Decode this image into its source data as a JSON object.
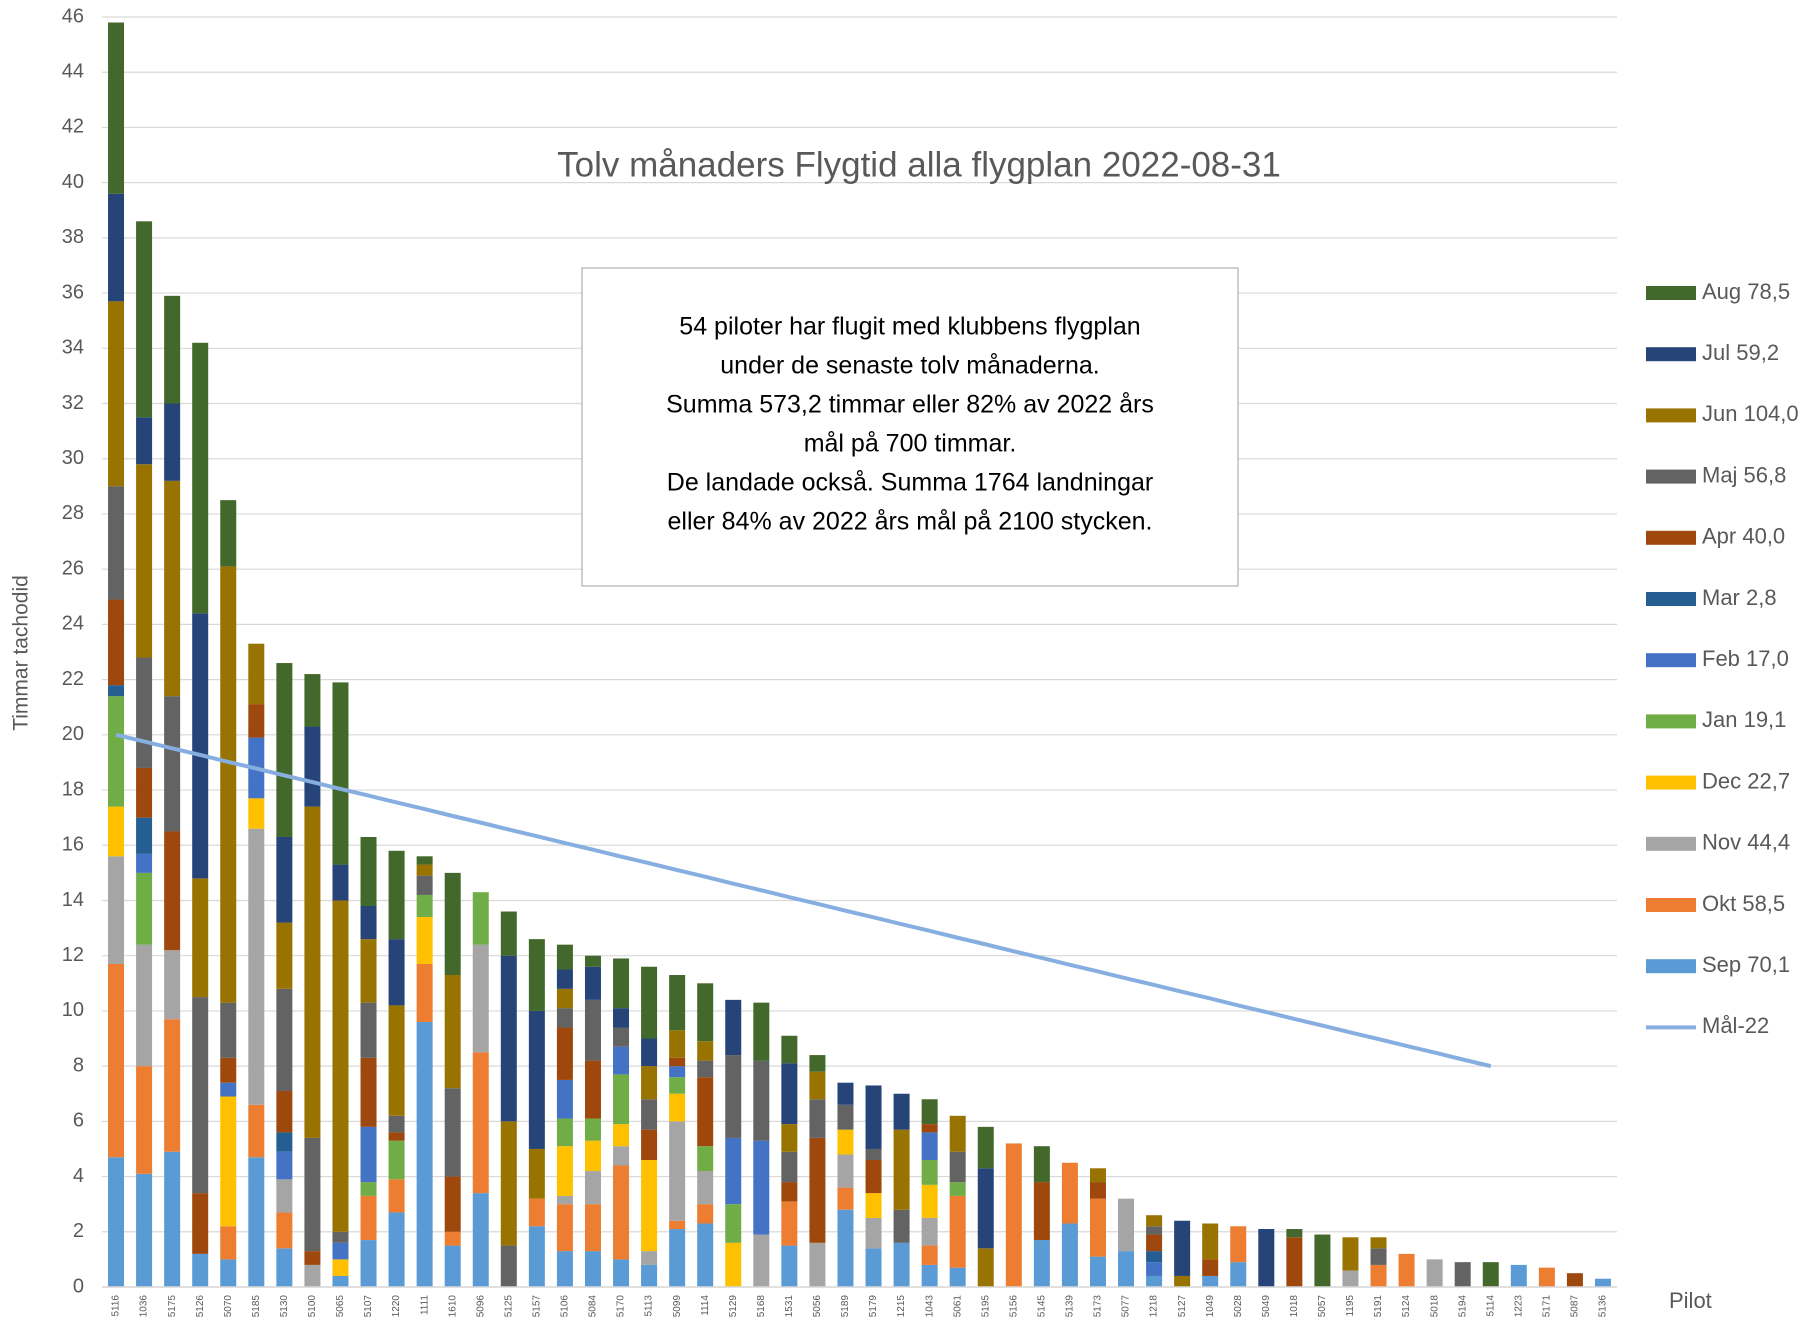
{
  "chart_data": {
    "type": "stacked_bar",
    "title": "Tolv månaders Flygtid alla flygplan 2022-08-31",
    "y_label": "Timmar tachodid",
    "x_label": "Pilot",
    "annotation": [
      "54 piloter har flugit med klubbens flygplan",
      "under de senaste tolv månaderna.",
      "Summa 573,2 timmar eller 82% av 2022 års",
      "mål på 700 timmar.",
      "De landade också. Summa 1764 landningar",
      "eller 84% av 2022 års mål på 2100 stycken."
    ],
    "categories": [
      "5116",
      "1036",
      "5175",
      "5126",
      "5070",
      "5185",
      "5130",
      "5100",
      "5065",
      "5107",
      "1220",
      "1111",
      "1610",
      "5096",
      "5125",
      "5157",
      "5106",
      "5084",
      "5170",
      "5113",
      "5099",
      "1114",
      "5129",
      "5168",
      "1531",
      "5056",
      "5189",
      "5179",
      "1215",
      "1043",
      "5061",
      "5195",
      "5156",
      "5145",
      "5139",
      "5173",
      "5077",
      "1218",
      "5127",
      "1049",
      "5028",
      "5049",
      "1018",
      "5057",
      "1195",
      "5191",
      "5124",
      "5018",
      "5194",
      "5114",
      "1223",
      "5171",
      "5087",
      "5136"
    ],
    "series": [
      {
        "name": "Sep 70,1",
        "color": "#5b9bd5",
        "values": [
          4.7,
          4.1,
          4.9,
          1.2,
          1.0,
          4.7,
          1.4,
          0,
          0.4,
          1.7,
          2.7,
          9.6,
          1.5,
          3.4,
          0,
          2.2,
          1.3,
          1.3,
          1.0,
          0.8,
          2.1,
          2.3,
          0,
          0,
          1.5,
          0,
          2.8,
          1.4,
          1.6,
          0.8,
          0.7,
          0,
          0,
          1.7,
          2.3,
          1.1,
          1.3,
          0.4,
          0,
          0.4,
          0.9,
          0,
          0,
          0,
          0,
          0,
          0,
          0,
          0,
          0,
          0.8,
          0,
          0,
          0.3
        ]
      },
      {
        "name": "Okt 58,5",
        "color": "#ed7d31",
        "values": [
          7.0,
          3.9,
          4.8,
          0,
          1.2,
          1.9,
          1.3,
          0,
          0,
          1.6,
          1.2,
          2.1,
          0.5,
          5.1,
          0,
          1.0,
          1.7,
          1.7,
          3.4,
          0,
          0.3,
          0.7,
          0,
          0,
          1.6,
          0,
          0.8,
          0,
          0,
          0.7,
          2.6,
          0,
          5.2,
          0,
          2.2,
          2.1,
          0,
          0,
          0,
          0,
          1.3,
          0,
          0,
          0,
          0,
          0.8,
          1.2,
          0,
          0,
          0,
          0,
          0.7,
          0,
          0
        ]
      },
      {
        "name": "Nov 44,4",
        "color": "#a5a5a5",
        "values": [
          3.9,
          4.4,
          2.5,
          0,
          0,
          10.0,
          1.2,
          0.8,
          0,
          0,
          0,
          0,
          0,
          3.9,
          0,
          0,
          0.3,
          1.2,
          0.7,
          0.5,
          3.6,
          1.2,
          0,
          1.9,
          0,
          1.6,
          1.2,
          1.1,
          0,
          1.0,
          0,
          0,
          0,
          0,
          0,
          0,
          1.9,
          0,
          0,
          0,
          0,
          0,
          0,
          0,
          0.6,
          0,
          0,
          1.0,
          0,
          0,
          0,
          0,
          0,
          0
        ]
      },
      {
        "name": "Dec 22,7",
        "color": "#ffc000",
        "values": [
          1.8,
          0,
          0,
          0,
          4.7,
          1.1,
          0,
          0,
          0.6,
          0,
          0,
          1.7,
          0,
          0,
          0,
          0,
          1.8,
          1.1,
          0.8,
          3.3,
          1.0,
          0,
          1.6,
          0,
          0,
          0,
          0.9,
          0.9,
          0,
          1.2,
          0,
          0,
          0,
          0,
          0,
          0,
          0,
          0,
          0,
          0,
          0,
          0,
          0,
          0,
          0,
          0,
          0,
          0,
          0,
          0,
          0,
          0,
          0,
          0
        ]
      },
      {
        "name": "Jan 19,1",
        "color": "#70ad47",
        "values": [
          4.0,
          2.6,
          0,
          0,
          0,
          0,
          0,
          0,
          0,
          0.5,
          1.4,
          0.8,
          0,
          1.9,
          0,
          0,
          1.0,
          0.8,
          1.8,
          0,
          0.6,
          0.9,
          1.4,
          0,
          0,
          0,
          0,
          0,
          0,
          0.9,
          0.5,
          0,
          0,
          0,
          0,
          0,
          0,
          0,
          0,
          0,
          0,
          0,
          0,
          0,
          0,
          0,
          0,
          0,
          0,
          0,
          0,
          0,
          0,
          0
        ]
      },
      {
        "name": "Feb 17,0",
        "color": "#4472c4",
        "values": [
          0,
          0.7,
          0,
          0,
          0.5,
          2.2,
          1.0,
          0,
          0.6,
          2.0,
          0,
          0,
          0,
          0,
          0,
          0,
          1.4,
          0,
          1.0,
          0,
          0.4,
          0,
          2.4,
          3.4,
          0,
          0,
          0,
          0,
          0,
          1.0,
          0,
          0,
          0,
          0,
          0,
          0,
          0,
          0.5,
          0,
          0,
          0,
          0,
          0,
          0,
          0,
          0,
          0,
          0,
          0,
          0,
          0,
          0,
          0,
          0
        ]
      },
      {
        "name": "Mar 2,8",
        "color": "#255e91",
        "values": [
          0.4,
          1.3,
          0,
          0,
          0,
          0,
          0.7,
          0,
          0,
          0,
          0,
          0,
          0,
          0,
          0,
          0,
          0,
          0,
          0,
          0,
          0,
          0,
          0,
          0,
          0,
          0,
          0,
          0,
          0,
          0,
          0,
          0,
          0,
          0,
          0,
          0,
          0,
          0.4,
          0,
          0,
          0,
          0,
          0,
          0,
          0,
          0,
          0,
          0,
          0,
          0,
          0,
          0,
          0,
          0
        ]
      },
      {
        "name": "Apr 40,0",
        "color": "#9e480e",
        "values": [
          3.1,
          1.8,
          4.3,
          2.2,
          0.9,
          1.2,
          1.5,
          0.5,
          0,
          2.5,
          0.3,
          0,
          2.0,
          0,
          0,
          0,
          1.9,
          2.1,
          0,
          1.1,
          0.3,
          2.5,
          0,
          0,
          0.7,
          3.8,
          0,
          1.2,
          0,
          0.3,
          0,
          0,
          0,
          2.1,
          0,
          0.6,
          0,
          0.6,
          0,
          0.6,
          0,
          0,
          1.8,
          0,
          0,
          0,
          0,
          0,
          0,
          0,
          0,
          0,
          0.5,
          0
        ]
      },
      {
        "name": "Maj 56,8",
        "color": "#636363",
        "values": [
          4.1,
          4.0,
          4.9,
          7.1,
          2.0,
          0,
          3.7,
          4.1,
          0.4,
          2.0,
          0.6,
          0.7,
          3.2,
          0,
          1.5,
          0,
          0.7,
          2.2,
          0.7,
          1.1,
          0,
          0.6,
          3.0,
          2.9,
          1.1,
          1.4,
          0.9,
          0.4,
          1.2,
          0,
          1.1,
          0,
          0,
          0,
          0,
          0,
          0,
          0.3,
          0,
          0,
          0,
          0,
          0,
          0,
          0,
          0.6,
          0,
          0,
          0.9,
          0,
          0,
          0,
          0,
          0
        ]
      },
      {
        "name": "Jun 104,0",
        "color": "#997300",
        "values": [
          6.7,
          7.0,
          7.8,
          4.3,
          15.8,
          2.2,
          2.4,
          12.0,
          12.0,
          2.3,
          4.0,
          0.4,
          4.1,
          0,
          4.5,
          1.8,
          0.7,
          0,
          0,
          1.2,
          1.0,
          0.7,
          0,
          0,
          1.0,
          1.0,
          0,
          0,
          2.9,
          0,
          1.3,
          1.4,
          0,
          0,
          0,
          0.5,
          0,
          0.4,
          0.4,
          1.3,
          0,
          0,
          0,
          0,
          1.2,
          0.4,
          0,
          0,
          0,
          0,
          0,
          0,
          0,
          0
        ]
      },
      {
        "name": "Jul 59,2",
        "color": "#264478",
        "values": [
          3.9,
          1.7,
          2.8,
          9.6,
          0,
          0,
          3.1,
          2.9,
          1.3,
          1.2,
          2.4,
          0,
          0,
          0,
          6.0,
          5.0,
          0.7,
          1.2,
          0.7,
          1.0,
          0,
          0,
          2.0,
          0,
          2.2,
          0,
          0.8,
          2.3,
          1.3,
          0,
          0,
          2.9,
          0,
          0,
          0,
          0,
          0,
          0,
          2.0,
          0,
          0,
          2.1,
          0,
          0,
          0,
          0,
          0,
          0,
          0,
          0,
          0,
          0,
          0,
          0
        ]
      },
      {
        "name": "Aug 78,5",
        "color": "#43682b",
        "values": [
          6.2,
          7.1,
          3.9,
          9.8,
          2.4,
          0,
          6.3,
          1.9,
          6.6,
          2.5,
          3.2,
          0.3,
          3.7,
          0,
          1.6,
          2.6,
          0.9,
          0.4,
          1.8,
          2.6,
          2.0,
          2.1,
          0,
          2.1,
          1.0,
          0.6,
          0,
          0,
          0,
          0.9,
          0,
          1.5,
          0,
          1.3,
          0,
          0,
          0,
          0,
          0,
          0,
          0,
          0,
          0.3,
          1.9,
          0,
          0,
          0,
          0,
          0,
          0.9,
          0,
          0,
          0,
          0
        ]
      }
    ],
    "line": {
      "name": "Mål-22",
      "color": "#86aee0",
      "values": [
        20,
        19.76,
        19.51,
        19.27,
        19.02,
        18.78,
        18.53,
        18.29,
        18.04,
        17.8,
        17.55,
        17.31,
        17.06,
        16.82,
        16.57,
        16.33,
        16.08,
        15.84,
        15.59,
        15.35,
        15.1,
        14.86,
        14.61,
        14.37,
        14.12,
        13.88,
        13.63,
        13.39,
        13.14,
        12.9,
        12.65,
        12.41,
        12.16,
        11.92,
        11.67,
        11.43,
        11.18,
        10.94,
        10.69,
        10.45,
        10.2,
        9.96,
        9.71,
        9.47,
        9.22,
        8.98,
        8.73,
        8.49,
        8.24,
        8.0,
        null,
        null,
        null,
        null
      ]
    },
    "ylim": [
      0,
      46
    ],
    "yticks": [
      0,
      2,
      4,
      6,
      8,
      10,
      12,
      14,
      16,
      18,
      20,
      22,
      24,
      26,
      28,
      30,
      32,
      34,
      36,
      38,
      40,
      42,
      44,
      46
    ],
    "grid": true,
    "legend": "right"
  }
}
